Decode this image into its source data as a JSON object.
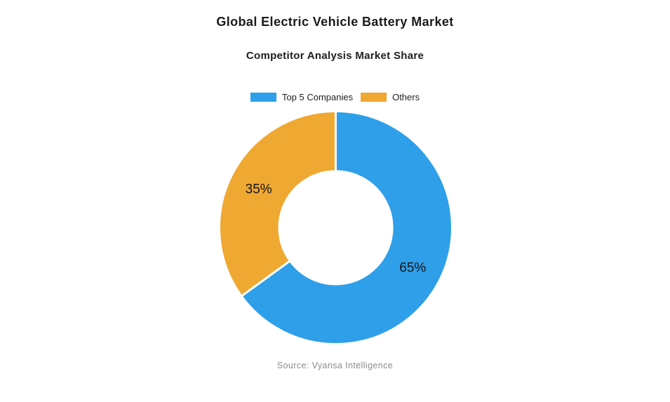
{
  "title": "Global Electric Vehicle Battery Market",
  "subtitle": "Competitor Analysis Market Share",
  "source": "Source: Vyansa Intelligence",
  "colors": {
    "blue": "#2E9FE8",
    "orange": "#EFA831",
    "slice_label": "#14161f",
    "title_text": "#1b1b1b",
    "source_text": "#8c8c8c",
    "background": "#ffffff"
  },
  "legend": [
    {
      "label": "Top 5 Companies",
      "color": "#2E9FE8"
    },
    {
      "label": "Others",
      "color": "#EFA831"
    }
  ],
  "chart_data": {
    "type": "pie",
    "donut": true,
    "title": "Global Electric Vehicle Battery Market",
    "subtitle": "Competitor Analysis Market Share",
    "categories": [
      "Top 5 Companies",
      "Others"
    ],
    "values": [
      65,
      35
    ],
    "data_labels": [
      "65%",
      "35%"
    ],
    "colors": [
      "#2E9FE8",
      "#EFA831"
    ],
    "start_angle_deg": 0,
    "direction": "clockwise",
    "inner_radius_ratio": 0.485,
    "slice_border_color": "#ffffff",
    "slice_border_width": 3,
    "legend_position": "top",
    "source": "Source: Vyansa Intelligence"
  }
}
